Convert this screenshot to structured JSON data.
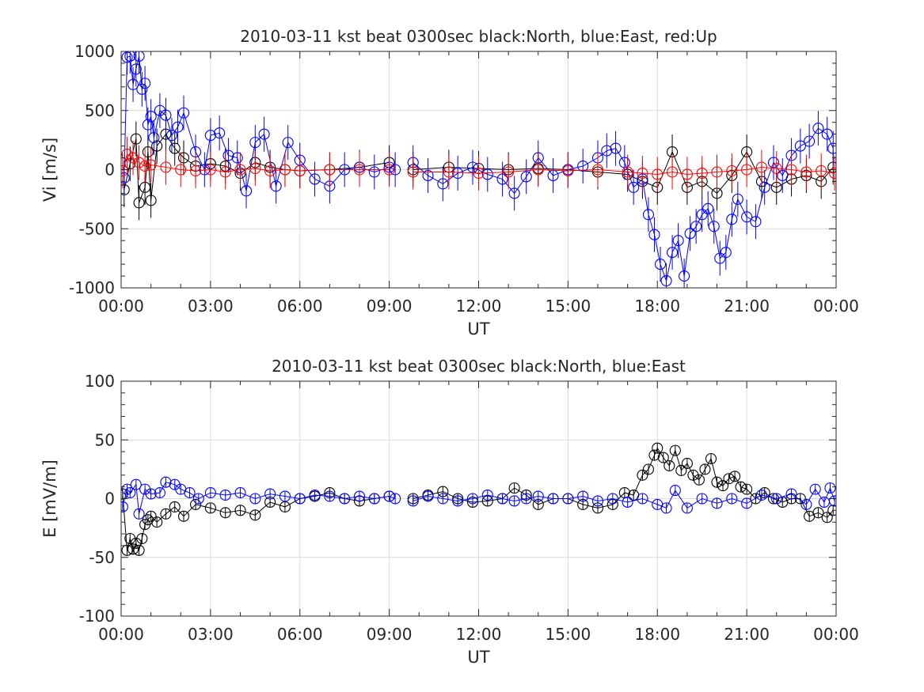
{
  "chart_data": [
    {
      "type": "scatter",
      "title": "2010-03-11 kst beat 0300sec black:North, blue:East, red:Up",
      "xlabel": "UT",
      "ylabel": "Vi [m/s]",
      "xlim_hours": [
        0,
        24
      ],
      "ylim": [
        -1000,
        1000
      ],
      "x_ticks": [
        "00:00",
        "03:00",
        "06:00",
        "09:00",
        "12:00",
        "15:00",
        "18:00",
        "21:00",
        "00:00"
      ],
      "y_ticks": [
        "-1000",
        "-500",
        "0",
        "500",
        "1000"
      ],
      "grid": true,
      "marker": "open circle, connected by line, with vertical error bars",
      "data_gap_hours": [
        9.3,
        9.6
      ],
      "series": [
        {
          "name": "North",
          "color": "#000000",
          "x": [
            0.1,
            0.3,
            0.5,
            0.6,
            0.8,
            0.9,
            1.0,
            1.2,
            1.5,
            1.8,
            2.1,
            2.5,
            3.0,
            3.5,
            4.0,
            4.5,
            5.0,
            5.5,
            6.0,
            7.0,
            8.0,
            9.0,
            9.8,
            11.0,
            12.0,
            13.0,
            14.0,
            15.0,
            16.0,
            17.0,
            17.5,
            18.0,
            18.5,
            19.0,
            19.5,
            20.0,
            20.5,
            21.0,
            21.5,
            22.0,
            22.5,
            23.0,
            23.5,
            23.9
          ],
          "y": [
            -170,
            50,
            260,
            -280,
            -150,
            150,
            -260,
            200,
            300,
            180,
            100,
            30,
            50,
            30,
            -30,
            60,
            20,
            0,
            -10,
            0,
            20,
            60,
            0,
            20,
            10,
            0,
            10,
            0,
            -20,
            -40,
            -100,
            -150,
            150,
            -150,
            -100,
            -200,
            -50,
            150,
            -100,
            -150,
            -80,
            -50,
            -100,
            20
          ]
        },
        {
          "name": "East",
          "color": "#0000ff",
          "x": [
            0.1,
            0.2,
            0.3,
            0.4,
            0.5,
            0.6,
            0.7,
            0.8,
            0.9,
            1.0,
            1.1,
            1.3,
            1.5,
            1.7,
            1.9,
            2.1,
            2.5,
            2.8,
            3.0,
            3.3,
            3.6,
            3.9,
            4.2,
            4.5,
            4.8,
            5.2,
            5.6,
            6.0,
            6.5,
            7.0,
            7.5,
            8.0,
            8.5,
            9.0,
            9.2,
            9.8,
            10.3,
            10.8,
            11.3,
            11.8,
            12.3,
            12.8,
            13.2,
            13.6,
            14.0,
            14.5,
            15.0,
            15.5,
            16.0,
            16.3,
            16.6,
            16.9,
            17.2,
            17.5,
            17.7,
            17.9,
            18.1,
            18.3,
            18.5,
            18.7,
            18.9,
            19.1,
            19.3,
            19.5,
            19.7,
            19.9,
            20.1,
            20.3,
            20.5,
            20.7,
            21.0,
            21.3,
            21.6,
            21.9,
            22.2,
            22.5,
            22.8,
            23.1,
            23.4,
            23.7,
            23.9
          ],
          "y": [
            -70,
            950,
            960,
            720,
            850,
            960,
            680,
            730,
            380,
            450,
            270,
            500,
            460,
            290,
            360,
            480,
            150,
            0,
            290,
            310,
            120,
            100,
            -180,
            230,
            300,
            -140,
            230,
            80,
            -80,
            -140,
            0,
            20,
            -20,
            20,
            0,
            60,
            -50,
            -120,
            -30,
            20,
            -40,
            -80,
            -200,
            -60,
            100,
            -50,
            0,
            30,
            100,
            160,
            180,
            60,
            -150,
            -80,
            -380,
            -550,
            -800,
            -940,
            -700,
            -600,
            -900,
            -540,
            -480,
            -380,
            -330,
            -480,
            -750,
            -700,
            -420,
            -250,
            -400,
            -440,
            -150,
            60,
            -50,
            120,
            200,
            240,
            350,
            300,
            180
          ]
        },
        {
          "name": "Up",
          "color": "#ff0000",
          "x": [
            0.05,
            0.2,
            0.4,
            0.6,
            0.8,
            1.0,
            1.5,
            2.0,
            2.5,
            3.0,
            3.5,
            4.0,
            4.5,
            5.0,
            5.5,
            6.0,
            7.0,
            8.0,
            9.0,
            9.8,
            11.0,
            12.0,
            13.0,
            14.0,
            15.0,
            16.0,
            17.0,
            17.5,
            18.0,
            18.5,
            19.0,
            19.5,
            20.0,
            20.5,
            21.0,
            21.5,
            22.0,
            22.5,
            23.0,
            23.5,
            23.95
          ],
          "y": [
            -10,
            130,
            100,
            60,
            30,
            40,
            20,
            0,
            -10,
            0,
            -20,
            0,
            10,
            -10,
            0,
            -10,
            0,
            0,
            0,
            -20,
            -20,
            -30,
            -20,
            0,
            -10,
            0,
            -20,
            -30,
            -40,
            -20,
            -40,
            -30,
            -20,
            -10,
            0,
            20,
            10,
            0,
            -20,
            -10,
            -30
          ]
        }
      ]
    },
    {
      "type": "scatter",
      "title": "2010-03-11 kst beat 0300sec black:North, blue:East",
      "xlabel": "UT",
      "ylabel": "E [mV/m]",
      "xlim_hours": [
        0,
        24
      ],
      "ylim": [
        -100,
        100
      ],
      "x_ticks": [
        "00:00",
        "03:00",
        "06:00",
        "09:00",
        "12:00",
        "15:00",
        "18:00",
        "21:00",
        "00:00"
      ],
      "y_ticks": [
        "-100",
        "-50",
        "0",
        "50",
        "100"
      ],
      "grid": true,
      "marker": "open circle, connected by line, with vertical error bars",
      "data_gap_hours": [
        9.3,
        9.6
      ],
      "series": [
        {
          "name": "North",
          "color": "#000000",
          "x": [
            0.05,
            0.2,
            0.3,
            0.4,
            0.5,
            0.6,
            0.7,
            0.8,
            0.9,
            1.0,
            1.2,
            1.5,
            1.8,
            2.1,
            2.5,
            3.0,
            3.5,
            4.0,
            4.5,
            5.0,
            5.5,
            6.0,
            6.5,
            7.0,
            7.5,
            8.0,
            8.5,
            9.0,
            9.8,
            10.3,
            10.8,
            11.3,
            11.8,
            12.3,
            12.8,
            13.2,
            13.6,
            14.0,
            14.5,
            15.0,
            15.5,
            16.0,
            16.5,
            16.9,
            17.2,
            17.5,
            17.7,
            17.9,
            18.0,
            18.2,
            18.4,
            18.6,
            18.8,
            19.0,
            19.2,
            19.4,
            19.6,
            19.8,
            20.0,
            20.2,
            20.4,
            20.6,
            20.8,
            21.0,
            21.3,
            21.6,
            21.9,
            22.2,
            22.5,
            22.8,
            23.1,
            23.4,
            23.7,
            23.9
          ],
          "y": [
            4,
            -44,
            -34,
            -43,
            -38,
            -44,
            -34,
            -22,
            -18,
            -15,
            -20,
            -13,
            -7,
            -15,
            -5,
            -8,
            -12,
            -10,
            -14,
            -3,
            -7,
            0,
            2,
            5,
            0,
            -2,
            0,
            2,
            0,
            3,
            6,
            0,
            -3,
            -2,
            0,
            9,
            3,
            -5,
            0,
            0,
            -5,
            -8,
            -5,
            5,
            3,
            20,
            25,
            37,
            43,
            35,
            28,
            41,
            24,
            30,
            20,
            16,
            25,
            34,
            14,
            11,
            17,
            19,
            10,
            8,
            0,
            5,
            0,
            -3,
            0,
            0,
            -15,
            -12,
            -16,
            -10
          ]
        },
        {
          "name": "East",
          "color": "#0000ff",
          "x": [
            0.05,
            0.2,
            0.3,
            0.5,
            0.6,
            0.8,
            1.0,
            1.3,
            1.5,
            1.8,
            2.0,
            2.3,
            2.6,
            3.0,
            3.5,
            4.0,
            4.5,
            5.0,
            5.5,
            6.0,
            6.5,
            7.0,
            7.5,
            8.0,
            8.5,
            9.0,
            9.2,
            9.8,
            10.3,
            10.8,
            11.3,
            11.8,
            12.3,
            12.8,
            13.2,
            13.6,
            14.0,
            14.5,
            15.0,
            15.5,
            16.0,
            16.5,
            17.0,
            17.5,
            18.0,
            18.3,
            18.6,
            19.0,
            19.5,
            20.0,
            20.5,
            21.0,
            21.5,
            22.0,
            22.5,
            23.0,
            23.3,
            23.6,
            23.8,
            23.95
          ],
          "y": [
            -7,
            8,
            5,
            12,
            -13,
            8,
            4,
            5,
            14,
            12,
            8,
            5,
            0,
            5,
            3,
            5,
            0,
            4,
            2,
            0,
            3,
            2,
            0,
            2,
            0,
            2,
            0,
            -2,
            2,
            0,
            -2,
            0,
            3,
            0,
            -2,
            0,
            2,
            0,
            0,
            2,
            -2,
            0,
            -3,
            0,
            -5,
            -8,
            7,
            -8,
            0,
            -4,
            0,
            -4,
            3,
            0,
            4,
            -5,
            8,
            -3,
            9,
            -2
          ]
        }
      ]
    }
  ]
}
